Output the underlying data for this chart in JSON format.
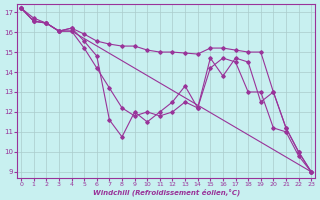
{
  "xlabel": "Windchill (Refroidissement éolien,°C)",
  "bg_color": "#c8f0f0",
  "line_color": "#993399",
  "grid_color": "#aacccc",
  "xlim": [
    -0.3,
    23.3
  ],
  "ylim": [
    8.7,
    17.4
  ],
  "yticks": [
    9,
    10,
    11,
    12,
    13,
    14,
    15,
    16,
    17
  ],
  "xticks": [
    0,
    1,
    2,
    3,
    4,
    5,
    6,
    7,
    8,
    9,
    10,
    11,
    12,
    13,
    14,
    15,
    16,
    17,
    18,
    19,
    20,
    21,
    22,
    23
  ],
  "l1_x": [
    0,
    1,
    2,
    3,
    4,
    23
  ],
  "l1_y": [
    17.2,
    16.7,
    16.45,
    16.05,
    16.05,
    9.0
  ],
  "l2_x": [
    0,
    1,
    2,
    3,
    4,
    5,
    6,
    7,
    8,
    9,
    10,
    11,
    12,
    13,
    14,
    15,
    16,
    17,
    18,
    19,
    20,
    21,
    22,
    23
  ],
  "l2_y": [
    17.2,
    16.55,
    16.45,
    16.05,
    16.2,
    15.9,
    15.55,
    15.4,
    15.3,
    15.3,
    15.1,
    15.0,
    15.0,
    14.95,
    14.9,
    15.2,
    15.2,
    15.1,
    15.0,
    15.0,
    13.0,
    11.2,
    10.0,
    9.0
  ],
  "l3_x": [
    0,
    1,
    2,
    3,
    4,
    5,
    6,
    7,
    8,
    9,
    10,
    11,
    12,
    13,
    14,
    15,
    16,
    17,
    18,
    19,
    20,
    21,
    22,
    23
  ],
  "l3_y": [
    17.2,
    16.55,
    16.45,
    16.05,
    16.2,
    15.55,
    14.8,
    11.6,
    10.75,
    12.0,
    11.5,
    12.0,
    12.5,
    13.3,
    12.2,
    14.7,
    13.8,
    14.7,
    14.5,
    12.5,
    13.0,
    11.2,
    10.0,
    9.0
  ],
  "l4_x": [
    0,
    1,
    2,
    3,
    4,
    5,
    6,
    7,
    8,
    9,
    10,
    11,
    12,
    13,
    14,
    15,
    16,
    17,
    18,
    19,
    20,
    21,
    22,
    23
  ],
  "l4_y": [
    17.2,
    16.55,
    16.45,
    16.05,
    16.05,
    15.2,
    14.2,
    13.2,
    12.2,
    11.8,
    12.0,
    11.8,
    12.0,
    12.5,
    12.2,
    14.2,
    14.7,
    14.5,
    13.0,
    13.0,
    11.2,
    11.0,
    9.8,
    9.0
  ]
}
